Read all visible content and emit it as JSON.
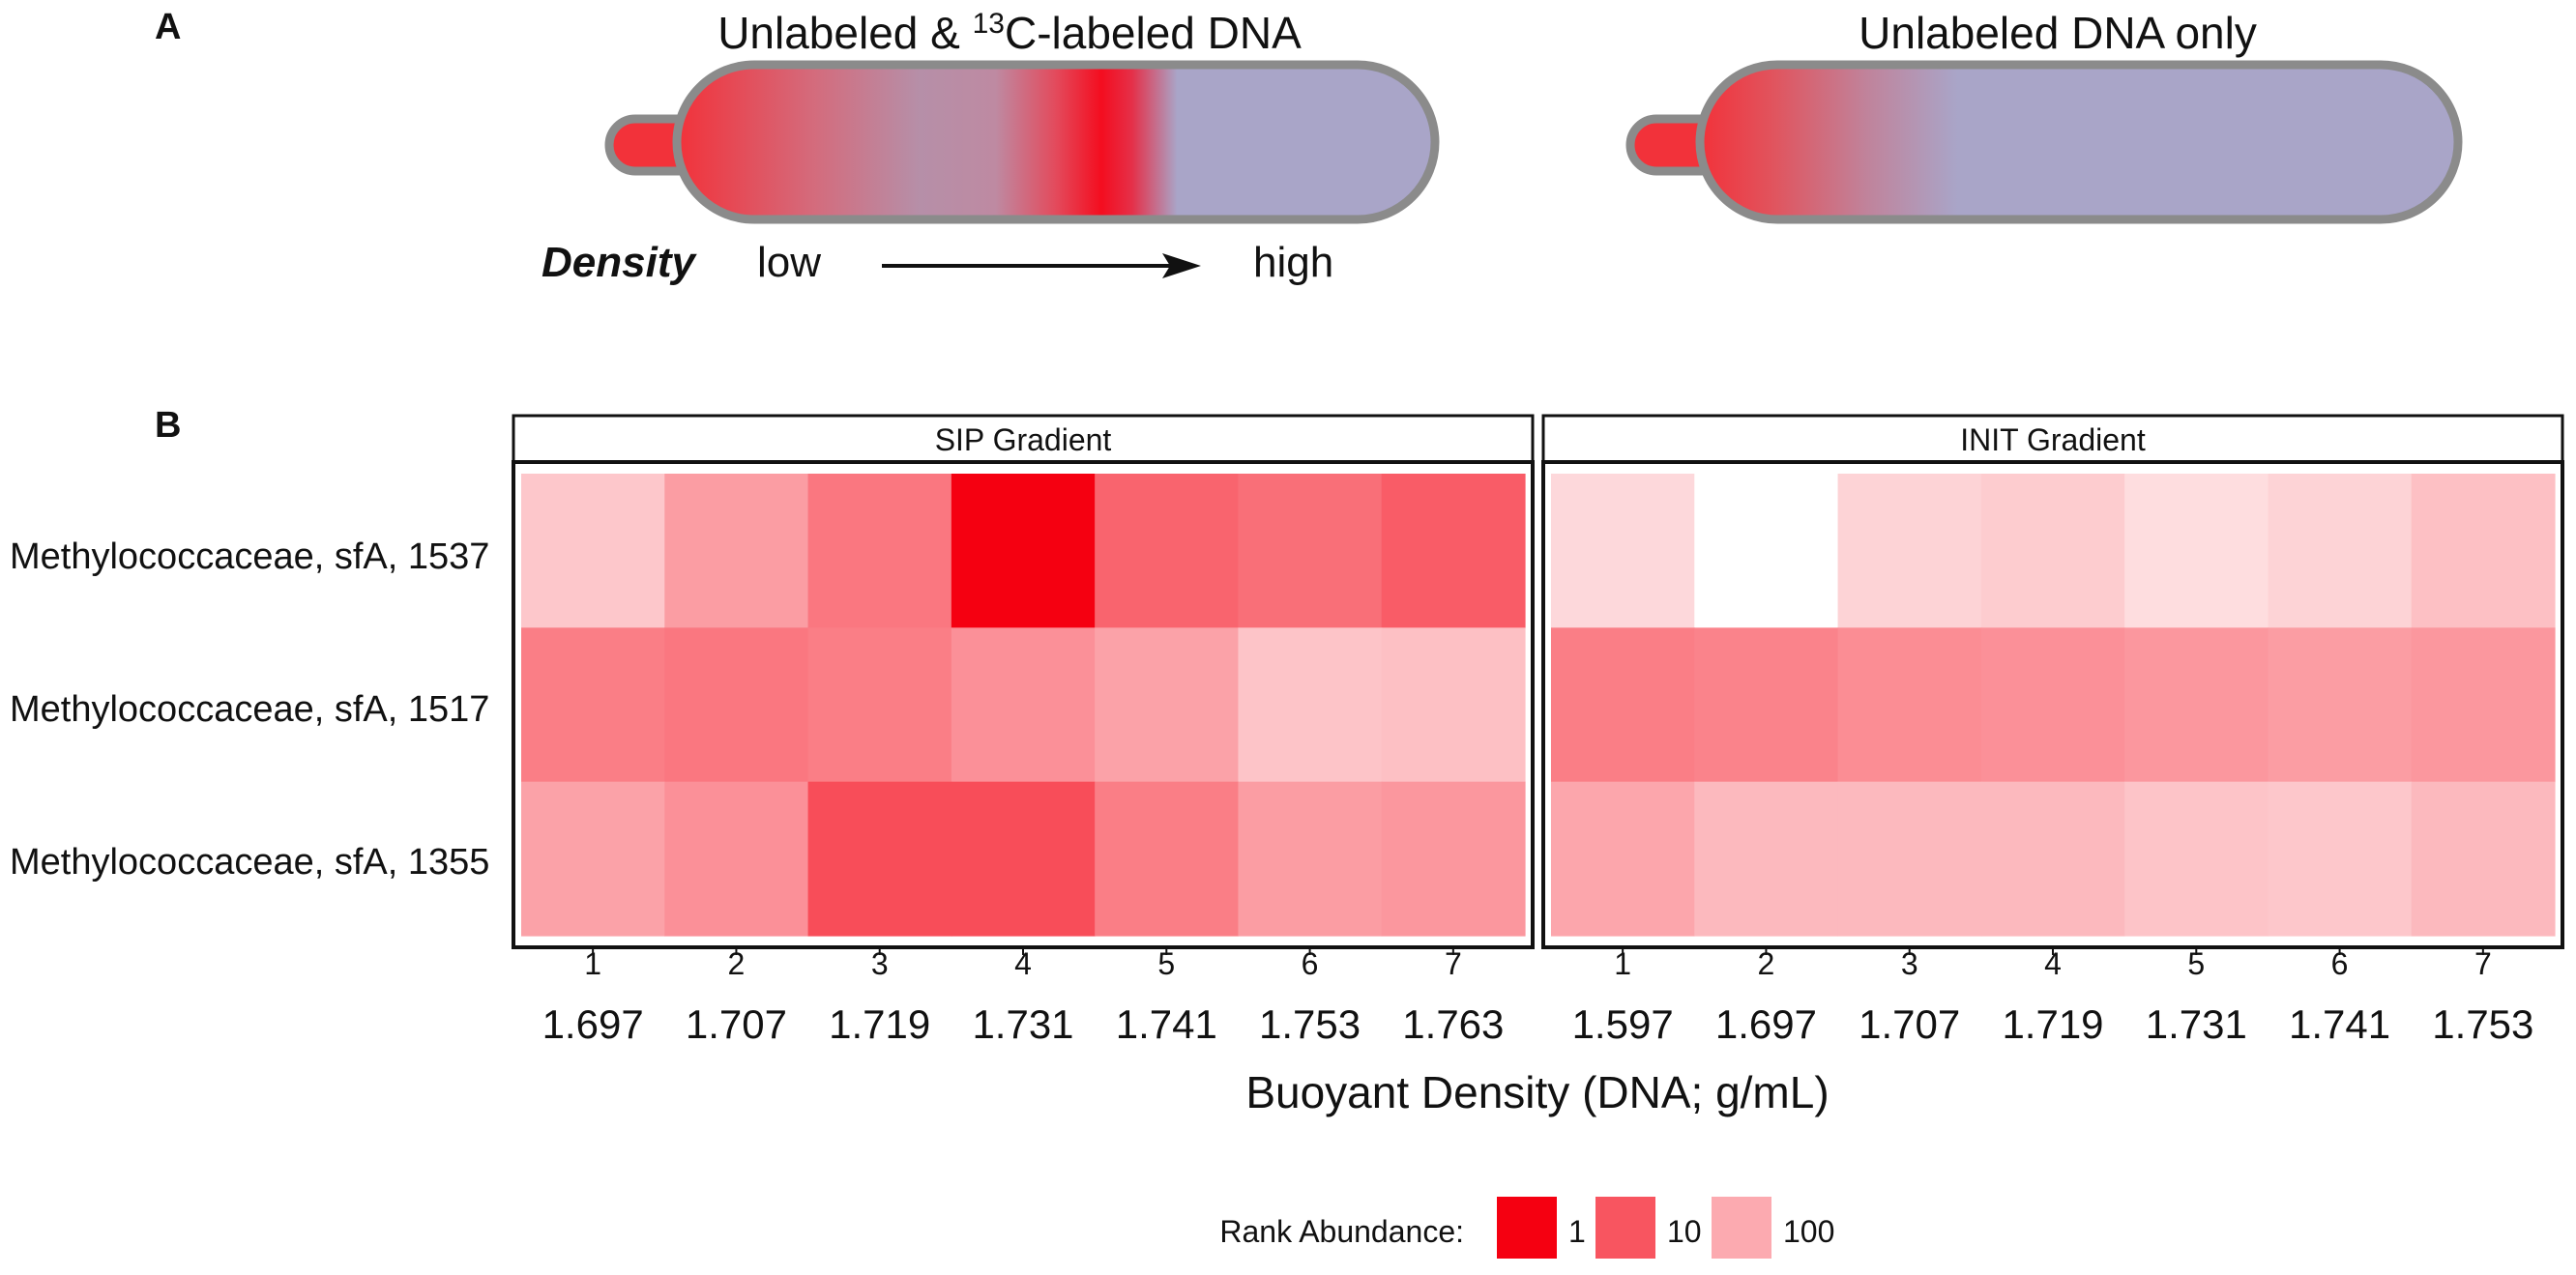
{
  "panel_a": {
    "label": "A",
    "tube_left_title_prefix": "Unlabeled & ",
    "tube_left_title_super": "13",
    "tube_left_title_suffix": "C-labeled DNA",
    "tube_right_title": "Unlabeled DNA only",
    "density_label": "Density",
    "low_label": "low",
    "high_label": "high",
    "colors": {
      "red": "#f2323a",
      "lavender": "#a9a5c8",
      "tube_outline": "#8b8b8b"
    }
  },
  "chart_data": {
    "type": "heatmap",
    "panel_label": "B",
    "xlabel": "Buoyant Density (DNA; g/mL)",
    "rows": [
      "Methylococcaceae, sfA, 1537",
      "Methylococcaceae, sfA, 1517",
      "Methylococcaceae, sfA, 1355"
    ],
    "value_name": "Rank Abundance",
    "color_scale": {
      "type": "log",
      "domain": [
        1,
        1000
      ],
      "colors": [
        "#f50011",
        "#ffffff"
      ]
    },
    "facets": [
      {
        "title": "SIP Gradient",
        "fractions": [
          "1",
          "2",
          "3",
          "4",
          "5",
          "6",
          "7"
        ],
        "densities": [
          "1.697",
          "1.707",
          "1.719",
          "1.731",
          "1.741",
          "1.753",
          "1.763"
        ],
        "values": [
          [
            220,
            70,
            25,
            1,
            15,
            20,
            12
          ],
          [
            30,
            25,
            30,
            50,
            80,
            200,
            180
          ],
          [
            80,
            50,
            8,
            8,
            30,
            70,
            60
          ]
        ]
      },
      {
        "title": "INIT  Gradient",
        "fractions": [
          "1",
          "2",
          "3",
          "4",
          "5",
          "6",
          "7"
        ],
        "densities": [
          "1.597",
          "1.697",
          "1.707",
          "1.719",
          "1.731",
          "1.741",
          "1.753"
        ],
        "values": [
          [
            350,
            1000,
            300,
            250,
            400,
            300,
            180
          ],
          [
            30,
            35,
            45,
            50,
            60,
            70,
            60
          ],
          [
            90,
            150,
            150,
            150,
            200,
            220,
            150
          ]
        ]
      }
    ],
    "legend": {
      "title": "Rank Abundance:",
      "entries": [
        {
          "label": "1",
          "value": 1
        },
        {
          "label": "10",
          "value": 10
        },
        {
          "label": "100",
          "value": 100
        }
      ]
    }
  }
}
